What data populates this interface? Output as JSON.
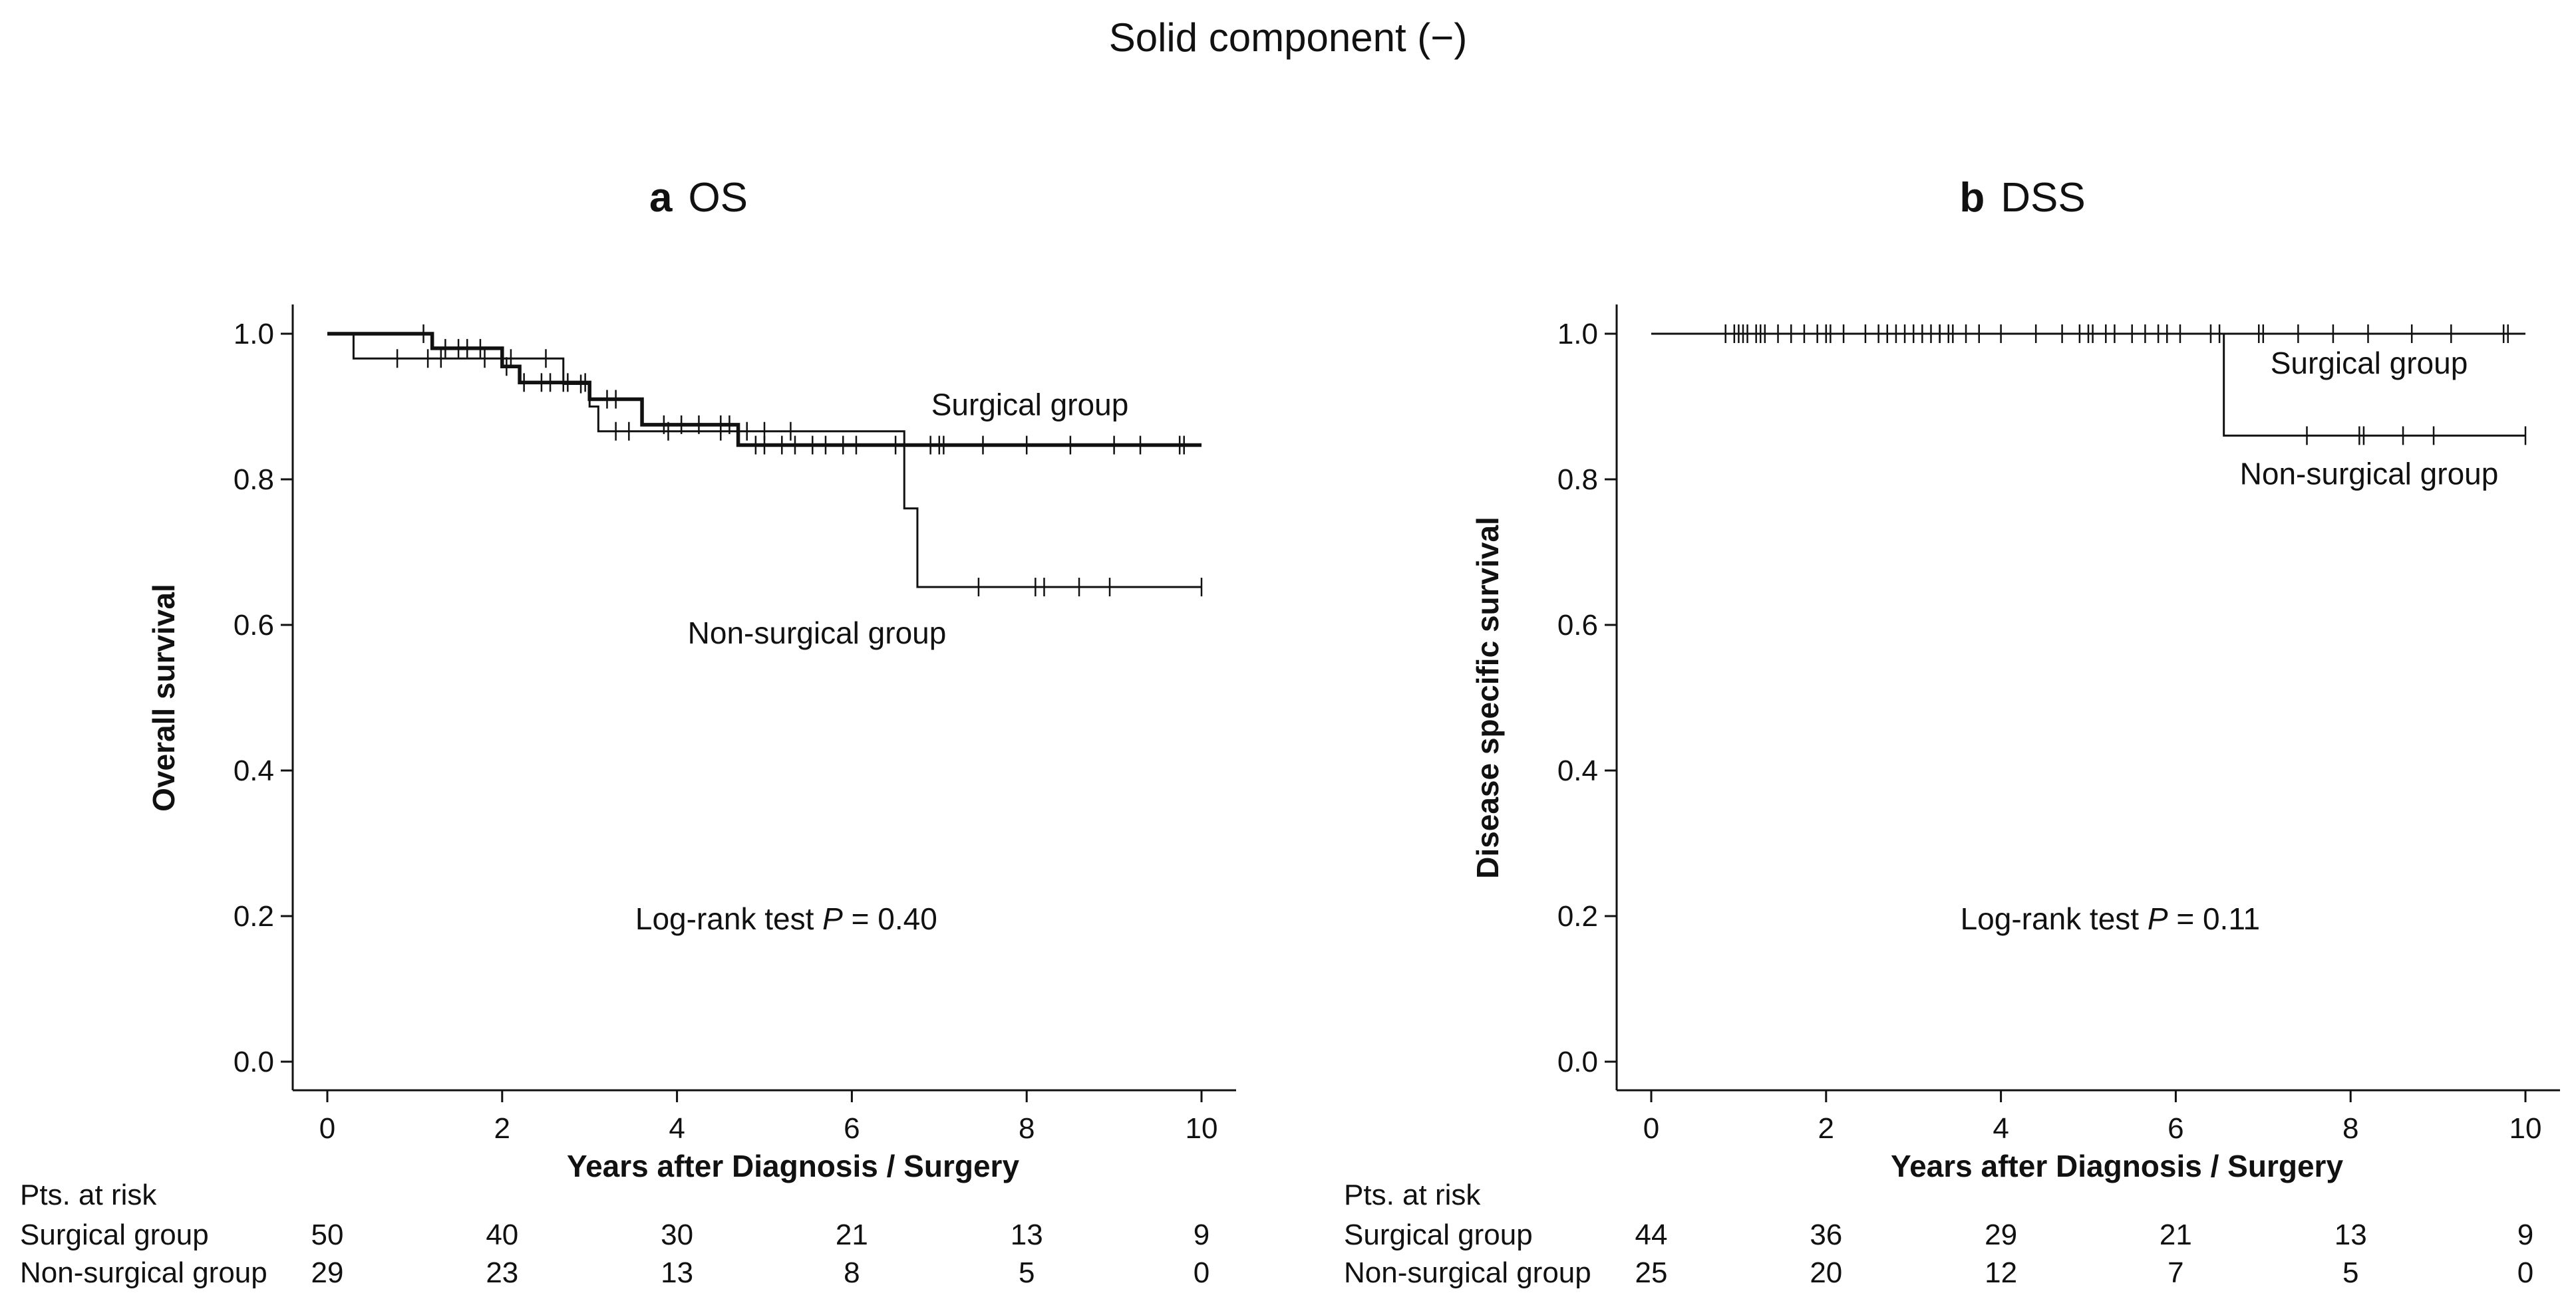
{
  "figure_title": "Solid component (−)",
  "colors": {
    "foreground": "#111111",
    "background": "#ffffff"
  },
  "chart_data": [
    {
      "type": "line",
      "subtype": "kaplan-meier",
      "panel_letter": "a",
      "title": "OS",
      "xlabel": "Years after Diagnosis / Surgery",
      "ylabel": "Overall survival",
      "xlim": [
        0,
        10
      ],
      "ylim": [
        0,
        1
      ],
      "xticks": [
        "0",
        "2",
        "4",
        "6",
        "8",
        "10"
      ],
      "yticks": [
        "0.0",
        "0.2",
        "0.4",
        "0.6",
        "0.8",
        "1.0"
      ],
      "grid": false,
      "annotation": {
        "text_before": "Log-rank test ",
        "p_symbol": "P",
        "text_after": " = 0.40"
      },
      "series": [
        {
          "name": "Surgical group",
          "line_weight": "bold",
          "label_position": "above line at right",
          "steps": [
            [
              0,
              1.0
            ],
            [
              1.2,
              0.98
            ],
            [
              2.0,
              0.955
            ],
            [
              2.2,
              0.933
            ],
            [
              2.8,
              0.933
            ],
            [
              3.0,
              0.91
            ],
            [
              3.6,
              0.875
            ],
            [
              4.7,
              0.847
            ],
            [
              10,
              0.847
            ]
          ],
          "censor_times": [
            1.1,
            1.35,
            1.5,
            1.6,
            1.75,
            2.05,
            2.25,
            2.45,
            2.55,
            2.7,
            2.75,
            2.95,
            3.2,
            3.3,
            3.85,
            4.05,
            4.25,
            4.5,
            4.6,
            4.9,
            5.0,
            5.2,
            5.35,
            5.55,
            5.7,
            5.9,
            6.05,
            6.5,
            6.9,
            7.0,
            7.05,
            7.5,
            8.0,
            8.5,
            9.0,
            9.3,
            9.75,
            9.8
          ]
        },
        {
          "name": "Non-surgical group",
          "line_weight": "thin",
          "label_position": "below line at right",
          "steps": [
            [
              0,
              1.0
            ],
            [
              0.3,
              0.966
            ],
            [
              2.7,
              0.931
            ],
            [
              3.0,
              0.9
            ],
            [
              3.1,
              0.866
            ],
            [
              6.55,
              0.866
            ],
            [
              6.6,
              0.76
            ],
            [
              6.75,
              0.652
            ],
            [
              10,
              0.652
            ]
          ],
          "censor_times": [
            0.8,
            1.15,
            1.3,
            1.8,
            2.1,
            2.5,
            2.9,
            3.3,
            3.45,
            3.9,
            4.5,
            4.8,
            5.0,
            5.3,
            7.45,
            8.1,
            8.2,
            8.6,
            8.95,
            10.0
          ]
        }
      ],
      "risk_table": {
        "header": "Pts. at risk",
        "times": [
          0,
          2,
          4,
          6,
          8,
          10
        ],
        "rows": [
          {
            "label": "Surgical group",
            "values": [
              "50",
              "40",
              "30",
              "21",
              "13",
              "9"
            ]
          },
          {
            "label": "Non-surgical group",
            "values": [
              "29",
              "23",
              "13",
              "8",
              "5",
              "0"
            ]
          }
        ]
      }
    },
    {
      "type": "line",
      "subtype": "kaplan-meier",
      "panel_letter": "b",
      "title": "DSS",
      "xlabel": "Years after Diagnosis / Surgery",
      "ylabel": "Disease specific survival",
      "xlim": [
        0,
        10
      ],
      "ylim": [
        0,
        1
      ],
      "xticks": [
        "0",
        "2",
        "4",
        "6",
        "8",
        "10"
      ],
      "yticks": [
        "0.0",
        "0.2",
        "0.4",
        "0.6",
        "0.8",
        "1.0"
      ],
      "grid": false,
      "annotation": {
        "text_before": "Log-rank test ",
        "p_symbol": "P",
        "text_after": " = 0.11"
      },
      "series": [
        {
          "name": "Surgical group",
          "line_weight": "thin",
          "label_position": "below line at right",
          "steps": [
            [
              0,
              1.0
            ],
            [
              10,
              1.0
            ]
          ],
          "censor_times": [
            0.85,
            1.0,
            1.05,
            1.1,
            1.2,
            1.3,
            1.45,
            1.6,
            1.75,
            2.0,
            2.0,
            2.05,
            2.2,
            2.45,
            2.6,
            2.8,
            2.9,
            3.0,
            3.1,
            3.2,
            3.3,
            3.4,
            3.45,
            3.6,
            3.75,
            4.0,
            4.4,
            4.7,
            4.9,
            5.0,
            5.05,
            5.2,
            5.3,
            5.5,
            5.65,
            5.8,
            5.9,
            6.05,
            6.4,
            6.5,
            6.95,
            7.0,
            7.4,
            7.8,
            8.2,
            8.7,
            9.15,
            9.75,
            9.8
          ]
        },
        {
          "name": "Non-surgical group",
          "line_weight": "thin",
          "label_position": "below line at right",
          "steps": [
            [
              0,
              1.0
            ],
            [
              6.55,
              1.0
            ],
            [
              6.55,
              0.86
            ],
            [
              10,
              0.86
            ]
          ],
          "censor_times": [
            0.95,
            1.25,
            1.9,
            2.7,
            3.3,
            7.5,
            8.1,
            8.15,
            8.6,
            8.95,
            10.0
          ]
        }
      ],
      "risk_table": {
        "header": "Pts. at risk",
        "times": [
          0,
          2,
          4,
          6,
          8,
          10
        ],
        "rows": [
          {
            "label": "Surgical group",
            "values": [
              "44",
              "36",
              "29",
              "21",
              "13",
              "9"
            ]
          },
          {
            "label": "Non-surgical group",
            "values": [
              "25",
              "20",
              "12",
              "7",
              "5",
              "0"
            ]
          }
        ]
      }
    }
  ]
}
